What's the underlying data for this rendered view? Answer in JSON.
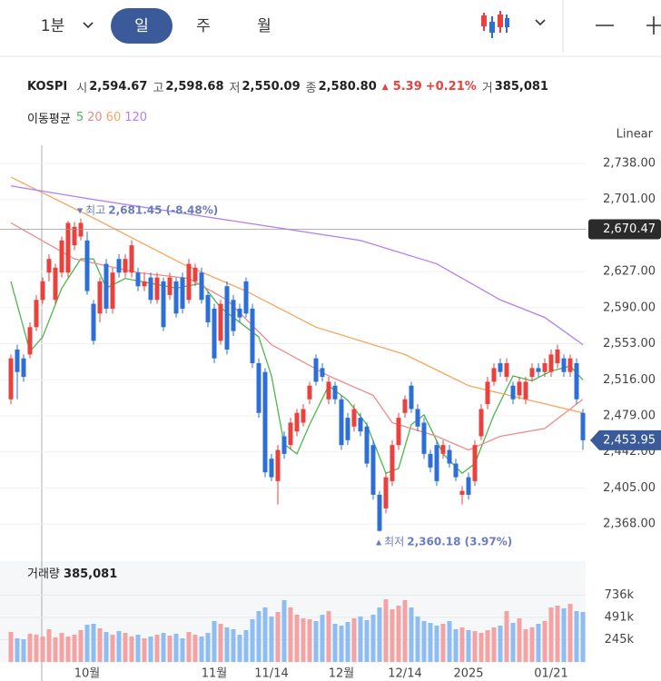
{
  "toolbar": {
    "interval": "1분",
    "tabs": [
      "일",
      "주",
      "월"
    ]
  },
  "info": {
    "symbol": "KOSPI",
    "fields": [
      {
        "label": "시",
        "value": "2,594.67"
      },
      {
        "label": "고",
        "value": "2,598.68"
      },
      {
        "label": "저",
        "value": "2,550.09"
      },
      {
        "label": "종",
        "value": "2,580.80"
      }
    ],
    "change_marker": "▲",
    "change": "5.39",
    "change_pct": "+0.21%",
    "volume_label": "거",
    "volume": "385,081"
  },
  "ma_label": "이동평균",
  "chart_data": [
    {
      "type": "candlestick",
      "scale_label": "Linear",
      "up_color": "#e8413e",
      "down_color": "#2d6fd6",
      "open": [
        2496,
        2547,
        2538,
        2542,
        2570,
        2598,
        2626,
        2598,
        2626,
        2626,
        2654,
        2663,
        2659,
        2594,
        2584,
        2635,
        2589,
        2640,
        2626,
        2626,
        2626,
        2612,
        2621,
        2598,
        2617,
        2603,
        2617,
        2621,
        2598,
        2617,
        2626,
        2603,
        2589,
        2556,
        2612,
        2598,
        2589,
        2617,
        2589,
        2533,
        2524,
        2435,
        2412,
        2458,
        2449,
        2463,
        2472,
        2496,
        2538,
        2528,
        2496,
        2510,
        2496,
        2477,
        2468,
        2477,
        2468,
        2449,
        2398,
        2384,
        2412,
        2449,
        2482,
        2510,
        2486,
        2472,
        2440,
        2449,
        2440,
        2444,
        2430,
        2398,
        2416,
        2412,
        2458,
        2491,
        2514,
        2533,
        2519,
        2510,
        2500,
        2496,
        2519,
        2528,
        2524,
        2524,
        2533,
        2538,
        2524,
        2533,
        2482
      ],
      "high": [
        2542,
        2552,
        2542,
        2575,
        2603,
        2621,
        2645,
        2635,
        2663,
        2679,
        2678,
        2681.45,
        2668,
        2598,
        2621,
        2640,
        2631,
        2645,
        2645,
        2659,
        2631,
        2626,
        2626,
        2626,
        2621,
        2626,
        2621,
        2626,
        2640,
        2635,
        2631,
        2607,
        2594,
        2598,
        2617,
        2603,
        2594,
        2621,
        2594,
        2538,
        2528,
        2440,
        2449,
        2463,
        2477,
        2486,
        2491,
        2514,
        2542,
        2533,
        2519,
        2514,
        2500,
        2482,
        2491,
        2482,
        2472,
        2454,
        2402,
        2421,
        2454,
        2482,
        2500,
        2514,
        2491,
        2477,
        2444,
        2454,
        2454,
        2449,
        2435,
        2407,
        2421,
        2454,
        2491,
        2519,
        2533,
        2538,
        2538,
        2514,
        2519,
        2519,
        2533,
        2533,
        2538,
        2547,
        2552,
        2542,
        2542,
        2538,
        2486
      ],
      "low": [
        2491,
        2496,
        2514,
        2538,
        2566,
        2594,
        2617,
        2594,
        2621,
        2621,
        2649,
        2659,
        2603,
        2552,
        2575,
        2584,
        2584,
        2621,
        2621,
        2621,
        2607,
        2607,
        2594,
        2594,
        2566,
        2598,
        2580,
        2584,
        2594,
        2612,
        2594,
        2570,
        2533,
        2552,
        2542,
        2561,
        2575,
        2580,
        2528,
        2477,
        2416,
        2412,
        2388,
        2435,
        2444,
        2458,
        2468,
        2491,
        2510,
        2514,
        2491,
        2491,
        2444,
        2449,
        2463,
        2458,
        2426,
        2393,
        2360.18,
        2379,
        2407,
        2444,
        2477,
        2482,
        2463,
        2435,
        2421,
        2407,
        2435,
        2426,
        2412,
        2388,
        2393,
        2407,
        2454,
        2486,
        2510,
        2519,
        2514,
        2491,
        2496,
        2491,
        2514,
        2519,
        2519,
        2519,
        2528,
        2519,
        2519,
        2491,
        2444
      ],
      "close": [
        2538,
        2524,
        2519,
        2570,
        2598,
        2617,
        2640,
        2631,
        2659,
        2677,
        2673,
        2677,
        2607,
        2556,
        2617,
        2589,
        2626,
        2626,
        2640,
        2654,
        2612,
        2617,
        2598,
        2621,
        2570,
        2621,
        2584,
        2589,
        2635,
        2631,
        2598,
        2575,
        2538,
        2594,
        2547,
        2566,
        2580,
        2584,
        2533,
        2482,
        2421,
        2416,
        2444,
        2440,
        2472,
        2482,
        2486,
        2510,
        2514,
        2519,
        2514,
        2496,
        2449,
        2454,
        2486,
        2463,
        2430,
        2398,
        2361,
        2416,
        2449,
        2477,
        2496,
        2486,
        2468,
        2440,
        2426,
        2412,
        2449,
        2430,
        2416,
        2402,
        2398,
        2449,
        2486,
        2514,
        2528,
        2524,
        2533,
        2496,
        2514,
        2514,
        2528,
        2524,
        2533,
        2542,
        2547,
        2524,
        2538,
        2496,
        2453.95
      ],
      "ma_series": [
        {
          "name": "5",
          "color": "#4cb84c",
          "x": [
            0,
            3,
            5,
            8,
            11,
            13,
            15,
            18,
            22,
            26,
            30,
            33,
            36,
            39,
            41,
            43,
            45,
            47,
            50,
            53,
            56,
            59,
            61,
            63,
            65,
            68,
            71,
            73,
            76,
            79,
            82,
            85,
            88,
            90
          ],
          "values": [
            2617,
            2545,
            2560,
            2610,
            2640,
            2640,
            2610,
            2620,
            2615,
            2610,
            2615,
            2590,
            2575,
            2560,
            2520,
            2450,
            2440,
            2470,
            2510,
            2495,
            2470,
            2420,
            2425,
            2470,
            2480,
            2440,
            2420,
            2430,
            2480,
            2520,
            2515,
            2525,
            2530,
            2516
          ]
        },
        {
          "name": "20",
          "color": "#f08a8a",
          "x": [
            0,
            10,
            20,
            28,
            34,
            41,
            50,
            57,
            60,
            67,
            72,
            77,
            84,
            90
          ],
          "values": [
            2677,
            2640,
            2626,
            2620,
            2598,
            2552,
            2520,
            2500,
            2472,
            2458,
            2444,
            2458,
            2466,
            2496
          ]
        },
        {
          "name": "60",
          "color": "#f6a55e",
          "x": [
            0,
            13,
            27,
            37,
            48,
            62,
            72,
            81,
            90
          ],
          "values": [
            2724,
            2682,
            2635,
            2607,
            2570,
            2542,
            2510,
            2496,
            2482
          ]
        },
        {
          "name": "120",
          "color": "#b47ef0",
          "x": [
            0,
            13,
            27,
            41,
            55,
            67,
            77,
            84,
            90
          ],
          "values": [
            2715,
            2701,
            2687,
            2673,
            2659,
            2635,
            2598,
            2580,
            2552
          ]
        }
      ],
      "annotations": [
        {
          "marker": "▼",
          "text": "최고",
          "value_label": "2,681.45 (-8.48%)"
        },
        {
          "marker": "▲",
          "text": "최저",
          "value_label": "2,360.18 (3.97%)"
        }
      ],
      "crosshair": {
        "value": 2670.47,
        "label": "2,670.47"
      },
      "last_price": {
        "value": 2453.95,
        "label": "2,453.95"
      },
      "ylim": [
        2342,
        2752
      ],
      "yticks": [
        {
          "value": 2738,
          "label": "2,738.00"
        },
        {
          "value": 2701,
          "label": "2,701.00"
        },
        {
          "value": 2627,
          "label": "2,627.00"
        },
        {
          "value": 2590,
          "label": "2,590.00"
        },
        {
          "value": 2553,
          "label": "2,553.00"
        },
        {
          "value": 2516,
          "label": "2,516.00"
        },
        {
          "value": 2479,
          "label": "2,479.00"
        },
        {
          "value": 2442,
          "label": "2,442.00"
        },
        {
          "value": 2405,
          "label": "2,405.00"
        },
        {
          "value": 2368,
          "label": "2,368.00"
        }
      ],
      "grid": true
    },
    {
      "type": "bar",
      "title": "거래량",
      "title_value": "385,081",
      "up_color": "#f3a3a3",
      "down_color": "#8ebdf2",
      "categories": [
        null,
        null,
        null,
        null,
        null,
        null,
        null,
        null,
        null,
        null,
        null,
        null,
        "10월",
        null,
        null,
        null,
        null,
        null,
        null,
        null,
        null,
        null,
        null,
        null,
        null,
        null,
        null,
        null,
        null,
        null,
        null,
        null,
        "11월",
        null,
        null,
        null,
        null,
        null,
        null,
        null,
        null,
        "11/14",
        null,
        null,
        null,
        null,
        null,
        null,
        null,
        null,
        null,
        null,
        "12월",
        null,
        null,
        null,
        null,
        null,
        null,
        null,
        null,
        null,
        "12/14",
        null,
        null,
        null,
        null,
        null,
        null,
        null,
        null,
        null,
        "2025",
        null,
        null,
        null,
        null,
        null,
        null,
        null,
        null,
        null,
        null,
        null,
        null,
        "01/21",
        null,
        null,
        null,
        null,
        null
      ],
      "values": [
        330000,
        260000,
        250000,
        310000,
        300000,
        280000,
        360000,
        270000,
        320000,
        280000,
        300000,
        350000,
        410000,
        420000,
        370000,
        330000,
        300000,
        340000,
        320000,
        280000,
        300000,
        260000,
        280000,
        300000,
        320000,
        290000,
        310000,
        260000,
        330000,
        300000,
        280000,
        320000,
        450000,
        420000,
        380000,
        360000,
        300000,
        350000,
        470000,
        560000,
        600000,
        500000,
        550000,
        680000,
        600000,
        520000,
        480000,
        470000,
        450000,
        520000,
        560000,
        420000,
        400000,
        440000,
        480000,
        500000,
        460000,
        520000,
        600000,
        690000,
        580000,
        620000,
        680000,
        600000,
        500000,
        450000,
        430000,
        400000,
        420000,
        450000,
        360000,
        380000,
        350000,
        340000,
        320000,
        350000,
        380000,
        400000,
        560000,
        430000,
        480000,
        360000,
        380000,
        420000,
        450000,
        600000,
        620000,
        590000,
        640000,
        560000,
        550000
      ],
      "ylim": [
        0,
        1040000
      ],
      "yticks": [
        {
          "value": 736000,
          "label": "736k"
        },
        {
          "value": 491000,
          "label": "491k"
        },
        {
          "value": 245000,
          "label": "245k"
        }
      ]
    }
  ]
}
